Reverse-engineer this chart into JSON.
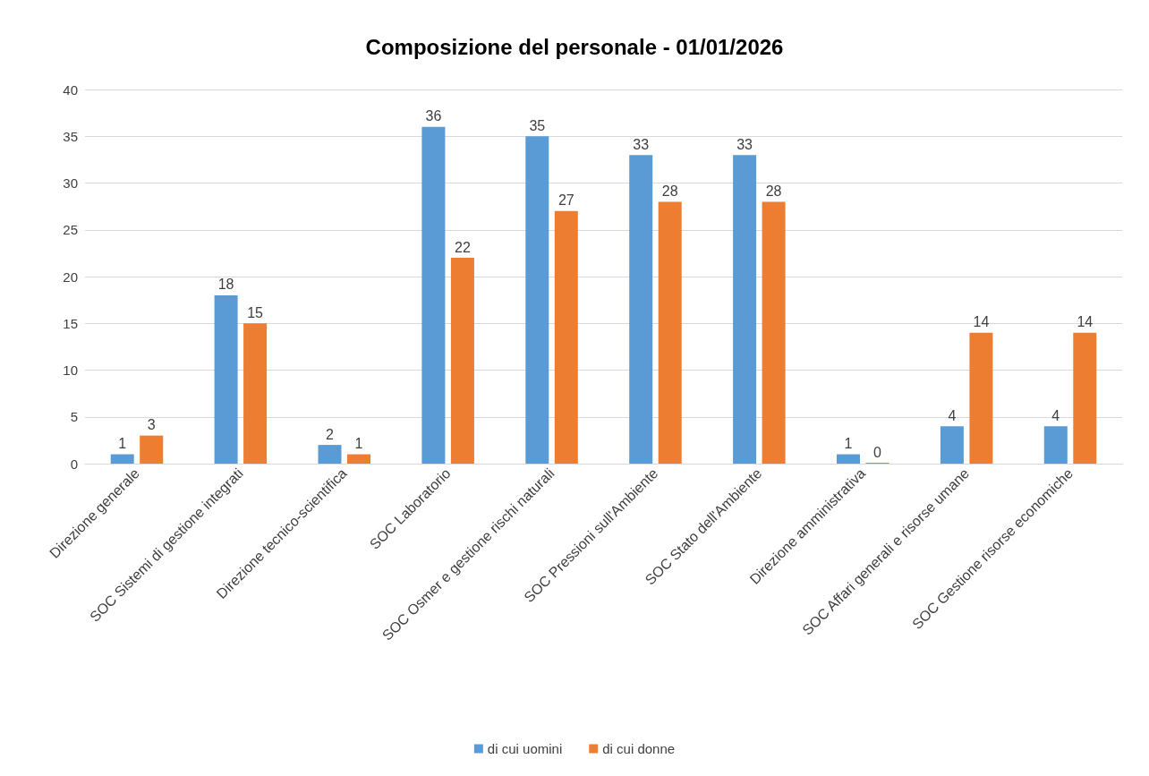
{
  "chart_data": {
    "type": "bar",
    "title": "Composizione del personale - 01/01/2026",
    "categories": [
      "Direzione generale",
      "SOC Sistemi di gestione integrati",
      "Direzione tecnico-scientifica",
      "SOC Laboratorio",
      "SOC Osmer e gestione rischi naturali",
      "SOC Pressioni sull'Ambiente",
      "SOC Stato dell'Ambiente",
      "Direzione amministrativa",
      "SOC Affari generali e risorse umane",
      "SOC Gestione risorse economiche"
    ],
    "series": [
      {
        "name": "di cui uomini",
        "color": "#5b9bd5",
        "values": [
          1,
          18,
          2,
          36,
          35,
          33,
          33,
          1,
          4,
          4
        ]
      },
      {
        "name": "di cui donne",
        "color": "#ed7d31",
        "values": [
          3,
          15,
          1,
          22,
          27,
          28,
          28,
          0,
          14,
          14
        ]
      }
    ],
    "ylim": [
      0,
      40
    ],
    "yticks": [
      0,
      5,
      10,
      15,
      20,
      25,
      30,
      35,
      40
    ],
    "grid": "y",
    "legend": "bottom",
    "data_labels": true
  }
}
